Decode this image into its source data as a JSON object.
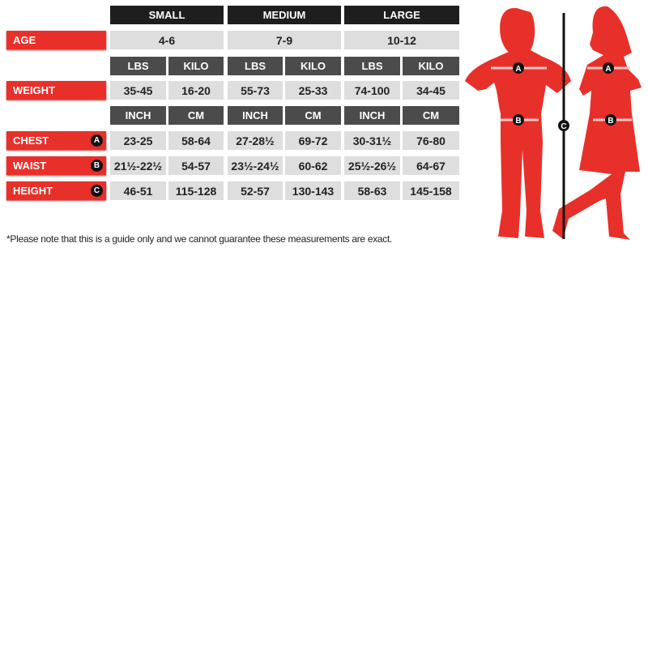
{
  "sizes": [
    "SMALL",
    "MEDIUM",
    "LARGE"
  ],
  "rows": {
    "age": {
      "label": "AGE",
      "values": [
        "4-6",
        "7-9",
        "10-12"
      ]
    },
    "weight_units": [
      "LBS",
      "KILO"
    ],
    "weight": {
      "label": "WEIGHT",
      "values": [
        "35-45",
        "16-20",
        "55-73",
        "25-33",
        "74-100",
        "34-45"
      ]
    },
    "length_units": [
      "INCH",
      "CM"
    ],
    "chest": {
      "label": "CHEST",
      "badge": "A",
      "values": [
        "23-25",
        "58-64",
        "27-28½",
        "69-72",
        "30-31½",
        "76-80"
      ]
    },
    "waist": {
      "label": "WAIST",
      "badge": "B",
      "values": [
        "21½-22½",
        "54-57",
        "23½-24½",
        "60-62",
        "25½-26½",
        "64-67"
      ]
    },
    "height": {
      "label": "HEIGHT",
      "badge": "C",
      "values": [
        "46-51",
        "115-128",
        "52-57",
        "130-143",
        "58-63",
        "145-158"
      ]
    }
  },
  "note": "*Please note that this is a guide only and we cannot guarantee these measurements are exact.",
  "figure": {
    "markers": [
      "A",
      "B",
      "C"
    ],
    "colors": {
      "silhouette": "#e8302a",
      "header": "#1e1e1e",
      "subheader": "#4b4b4b",
      "cell": "#dedede"
    }
  }
}
